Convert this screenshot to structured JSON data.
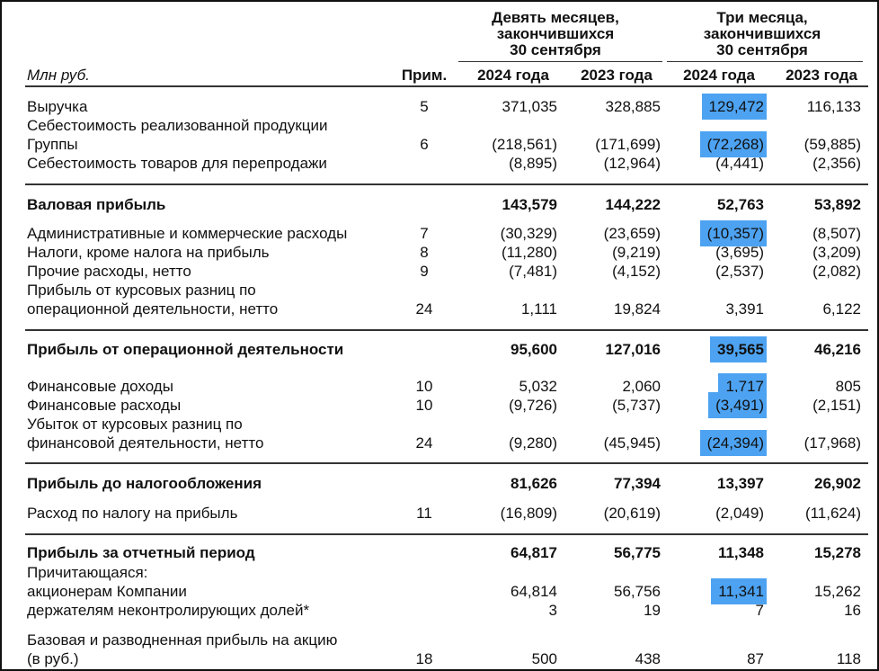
{
  "header": {
    "unit": "Млн руб.",
    "note": "Прим.",
    "groups": [
      {
        "lines": [
          "Девять месяцев,",
          "закончившихся",
          "30 сентября"
        ],
        "years": [
          "2024 года",
          "2023 года"
        ]
      },
      {
        "lines": [
          "Три месяца,",
          "закончившихся",
          "30 сентября"
        ],
        "years": [
          "2024 года",
          "2023 года"
        ]
      }
    ]
  },
  "highlight_color": "#4da3f2",
  "rows": [
    {
      "label": [
        "Выручка"
      ],
      "note": "5",
      "values": [
        "371,035",
        "328,885",
        "129,472",
        "116,133"
      ],
      "highlighted": [
        2
      ]
    },
    {
      "label": [
        "Себестоимость реализованной продукции",
        "Группы"
      ],
      "note": "6",
      "values": [
        "(218,561)",
        "(171,699)",
        "(72,268)",
        "(59,885)"
      ],
      "highlighted": [
        2
      ]
    },
    {
      "label": [
        "Себестоимость товаров для перепродажи"
      ],
      "values": [
        "(8,895)",
        "(12,964)",
        "(4,441)",
        "(2,356)"
      ]
    },
    {
      "label": [
        "Валовая прибыль"
      ],
      "bold": true,
      "values": [
        "143,579",
        "144,222",
        "52,763",
        "53,892"
      ]
    },
    {
      "label": [
        "Административные и коммерческие расходы"
      ],
      "note": "7",
      "values": [
        "(30,329)",
        "(23,659)",
        "(10,357)",
        "(8,507)"
      ],
      "highlighted": [
        2
      ]
    },
    {
      "label": [
        "Налоги, кроме налога на прибыль"
      ],
      "note": "8",
      "values": [
        "(11,280)",
        "(9,219)",
        "(3,695)",
        "(3,209)"
      ]
    },
    {
      "label": [
        "Прочие расходы, нетто"
      ],
      "note": "9",
      "values": [
        "(7,481)",
        "(4,152)",
        "(2,537)",
        "(2,082)"
      ]
    },
    {
      "label": [
        "Прибыль от курсовых разниц по",
        "операционной деятельности, нетто"
      ],
      "note": "24",
      "values": [
        "1,111",
        "19,824",
        "3,391",
        "6,122"
      ]
    },
    {
      "label": [
        "Прибыль от операционной деятельности"
      ],
      "bold": true,
      "values": [
        "95,600",
        "127,016",
        "39,565",
        "46,216"
      ],
      "highlighted": [
        2
      ]
    },
    {
      "label": [
        "Финансовые доходы"
      ],
      "note": "10",
      "values": [
        "5,032",
        "2,060",
        "1,717",
        "805"
      ],
      "highlighted": [
        2
      ]
    },
    {
      "label": [
        "Финансовые расходы"
      ],
      "note": "10",
      "values": [
        "(9,726)",
        "(5,737)",
        "(3,491)",
        "(2,151)"
      ],
      "highlighted": [
        2
      ]
    },
    {
      "label": [
        "Убыток от курсовых разниц по",
        "финансовой деятельности, нетто"
      ],
      "note": "24",
      "values": [
        "(9,280)",
        "(45,945)",
        "(24,394)",
        "(17,968)"
      ],
      "highlighted": [
        2
      ]
    },
    {
      "label": [
        "Прибыль до налогообложения"
      ],
      "bold": true,
      "values": [
        "81,626",
        "77,394",
        "13,397",
        "26,902"
      ]
    },
    {
      "label": [
        "Расход по налогу на прибыль"
      ],
      "note": "11",
      "values": [
        "(16,809)",
        "(20,619)",
        "(2,049)",
        "(11,624)"
      ]
    },
    {
      "label": [
        "Прибыль за отчетный период"
      ],
      "bold": true,
      "values": [
        "64,817",
        "56,775",
        "11,348",
        "15,278"
      ]
    },
    {
      "label": [
        "Причитающаяся:"
      ]
    },
    {
      "label": [
        "акционерам Компании"
      ],
      "values": [
        "64,814",
        "56,756",
        "11,341",
        "15,262"
      ],
      "highlighted": [
        2
      ]
    },
    {
      "label": [
        "держателям неконтролирующих долей*"
      ],
      "values": [
        "3",
        "19",
        "7",
        "16"
      ]
    },
    {
      "label": [
        "Базовая и разводненная прибыль на акцию",
        "(в руб.)"
      ],
      "note": "18",
      "values": [
        "500",
        "438",
        "87",
        "118"
      ]
    }
  ]
}
